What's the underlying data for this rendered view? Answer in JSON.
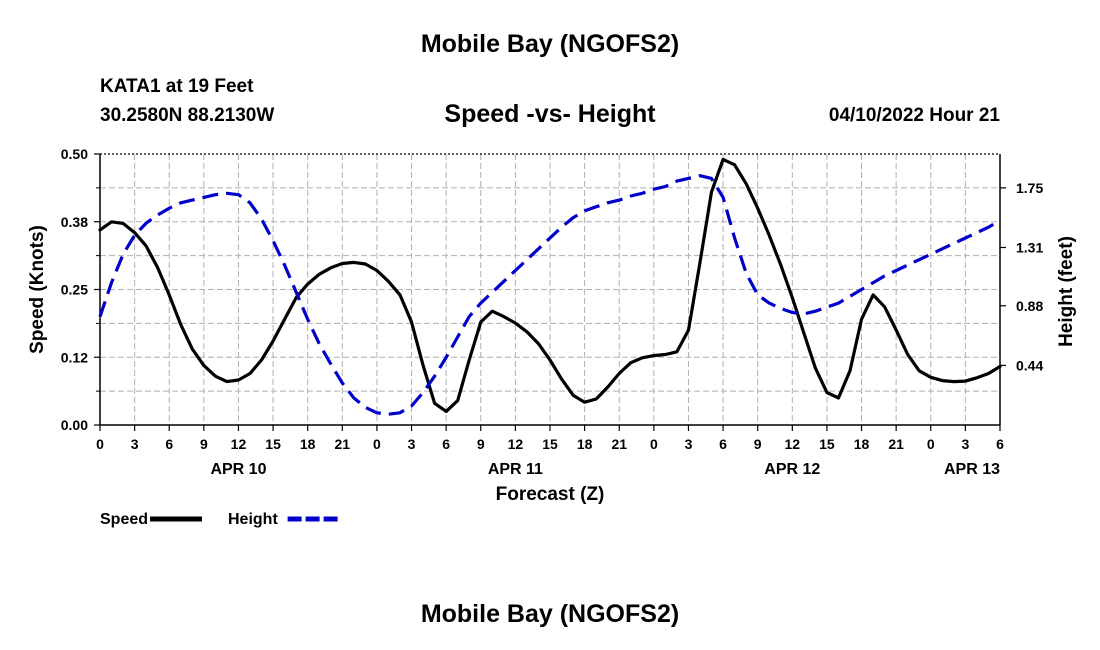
{
  "page": {
    "main_title": "Mobile Bay (NGOFS2)",
    "station_name": "KATA1 at 19 Feet",
    "station_coords": "30.2580N  88.2130W",
    "chart_title": "Speed -vs- Height",
    "forecast_time": "04/10/2022 Hour 21",
    "footer_title": "Mobile Bay (NGOFS2)"
  },
  "chart_data": {
    "type": "line",
    "title": "Speed -vs- Height",
    "xlabel": "Forecast (Z)",
    "ylabel": "Speed (Knots)",
    "y2label": "Height (feet)",
    "x_unit": "hours since APR 10 00Z",
    "xlim": [
      0,
      78
    ],
    "ylim": [
      0,
      0.5
    ],
    "y2lim": [
      0.0,
      2.0
    ],
    "grid": true,
    "x_ticks": [
      0,
      3,
      6,
      9,
      12,
      15,
      18,
      21,
      24,
      27,
      30,
      33,
      36,
      39,
      42,
      45,
      48,
      51,
      54,
      57,
      60,
      63,
      66,
      69,
      72,
      75,
      78
    ],
    "x_tick_labels": [
      "0",
      "3",
      "6",
      "9",
      "12",
      "15",
      "18",
      "21",
      "0",
      "3",
      "6",
      "9",
      "12",
      "15",
      "18",
      "21",
      "0",
      "3",
      "6",
      "9",
      "12",
      "15",
      "18",
      "21",
      "0",
      "3",
      "6"
    ],
    "date_labels": [
      {
        "x": 12,
        "label": "APR 10"
      },
      {
        "x": 36,
        "label": "APR 11"
      },
      {
        "x": 60,
        "label": "APR 12"
      },
      {
        "x": 78,
        "label": "APR 13"
      }
    ],
    "y_ticks": [
      0.0,
      0.125,
      0.25,
      0.375,
      0.5
    ],
    "y_tick_labels": [
      "0.00",
      "0.12",
      "0.25",
      "0.38",
      "0.50"
    ],
    "y2_ticks": [
      0.44,
      0.88,
      1.31,
      1.75
    ],
    "y2_tick_labels": [
      "0.44",
      "0.88",
      "1.31",
      "1.75"
    ],
    "series": [
      {
        "name": "Speed",
        "axis": "left",
        "color": "#000000",
        "dash": "solid",
        "x": [
          0,
          1,
          2,
          3,
          4,
          5,
          6,
          7,
          8,
          9,
          10,
          11,
          12,
          13,
          14,
          15,
          16,
          17,
          18,
          19,
          20,
          21,
          22,
          23,
          24,
          25,
          26,
          27,
          28,
          29,
          30,
          31,
          32,
          33,
          34,
          35,
          36,
          37,
          38,
          39,
          40,
          41,
          42,
          43,
          44,
          45,
          46,
          47,
          48,
          49,
          50,
          51,
          52,
          53,
          54,
          55,
          56,
          57,
          58,
          59,
          60,
          61,
          62,
          63,
          64,
          65,
          66,
          67,
          68,
          69,
          70,
          71,
          72,
          73,
          74,
          75,
          76,
          77,
          78
        ],
        "values": [
          0.36,
          0.375,
          0.372,
          0.355,
          0.33,
          0.29,
          0.24,
          0.185,
          0.14,
          0.11,
          0.09,
          0.08,
          0.083,
          0.095,
          0.12,
          0.155,
          0.195,
          0.235,
          0.26,
          0.278,
          0.29,
          0.298,
          0.3,
          0.297,
          0.285,
          0.265,
          0.24,
          0.19,
          0.11,
          0.04,
          0.025,
          0.045,
          0.12,
          0.19,
          0.21,
          0.2,
          0.188,
          0.172,
          0.15,
          0.12,
          0.085,
          0.055,
          0.042,
          0.048,
          0.07,
          0.095,
          0.115,
          0.124,
          0.128,
          0.13,
          0.135,
          0.175,
          0.3,
          0.43,
          0.49,
          0.48,
          0.445,
          0.4,
          0.35,
          0.295,
          0.235,
          0.17,
          0.105,
          0.06,
          0.05,
          0.1,
          0.195,
          0.24,
          0.218,
          0.175,
          0.13,
          0.1,
          0.088,
          0.082,
          0.08,
          0.081,
          0.087,
          0.095,
          0.108
        ]
      },
      {
        "name": "Height",
        "axis": "right",
        "color": "#0000cc",
        "dash": "dashed",
        "x": [
          0,
          1,
          2,
          3,
          4,
          5,
          6,
          7,
          8,
          9,
          10,
          11,
          12,
          13,
          14,
          15,
          16,
          17,
          18,
          19,
          20,
          21,
          22,
          23,
          24,
          25,
          26,
          27,
          28,
          29,
          30,
          31,
          32,
          33,
          34,
          35,
          36,
          37,
          38,
          39,
          40,
          41,
          42,
          43,
          44,
          45,
          46,
          47,
          48,
          49,
          50,
          51,
          52,
          53,
          54,
          55,
          56,
          57,
          58,
          59,
          60,
          61,
          62,
          63,
          64,
          65,
          66,
          67,
          68,
          69,
          70,
          71,
          72,
          73,
          74,
          75,
          76,
          77,
          78
        ],
        "values": [
          0.8,
          1.05,
          1.26,
          1.4,
          1.49,
          1.55,
          1.6,
          1.64,
          1.66,
          1.68,
          1.7,
          1.71,
          1.7,
          1.64,
          1.52,
          1.36,
          1.18,
          0.98,
          0.78,
          0.6,
          0.45,
          0.31,
          0.2,
          0.13,
          0.09,
          0.08,
          0.09,
          0.14,
          0.24,
          0.36,
          0.5,
          0.65,
          0.8,
          0.9,
          0.98,
          1.06,
          1.14,
          1.22,
          1.3,
          1.38,
          1.46,
          1.53,
          1.58,
          1.61,
          1.64,
          1.66,
          1.69,
          1.71,
          1.74,
          1.76,
          1.8,
          1.82,
          1.84,
          1.82,
          1.68,
          1.38,
          1.12,
          0.96,
          0.9,
          0.86,
          0.83,
          0.82,
          0.84,
          0.87,
          0.9,
          0.95,
          1.0,
          1.05,
          1.1,
          1.14,
          1.18,
          1.22,
          1.26,
          1.3,
          1.34,
          1.38,
          1.42,
          1.46,
          1.51
        ]
      }
    ],
    "legend": [
      {
        "label": "Speed",
        "color": "#000000",
        "dash": "solid"
      },
      {
        "label": "Height",
        "color": "#0000cc",
        "dash": "dashed"
      }
    ]
  }
}
